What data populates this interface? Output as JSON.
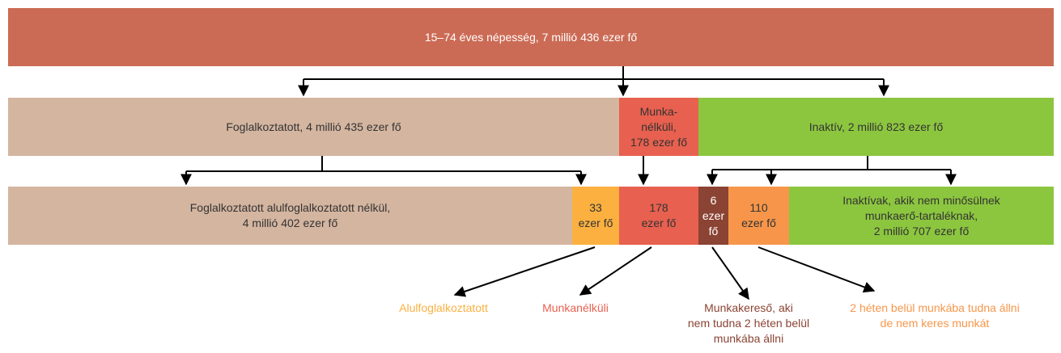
{
  "top": "15–74 éves népesség, 7 millió 436 ezer fő",
  "level2": [
    [
      "Foglalkoztatott, 4 millió 435 ezer fő"
    ],
    [
      "Munka-",
      "nélküli,",
      "178 ezer fő"
    ],
    [
      "Inaktív, 2 millió 823 ezer fő"
    ]
  ],
  "level3": [
    [
      "Foglalkoztatott alulfoglalkoztatott nélkül,",
      "4 millió 402 ezer fő"
    ],
    [
      "33",
      "ezer fő"
    ],
    [
      "178",
      "ezer fő"
    ],
    [
      "6",
      "ezer",
      "fő"
    ],
    [
      "110",
      "ezer fő"
    ],
    [
      "Inaktívak, akik nem minősülnek",
      "munkaerő-tartaléknak,",
      "2 millió 707 ezer fő"
    ]
  ],
  "legend": [
    [
      "Alulfoglalkoztatott"
    ],
    [
      "Munkanélküli"
    ],
    [
      "Munkakereső, aki",
      "nem tudna 2 héten belül",
      "munkába állni"
    ],
    [
      "2 héten belül munkába tudna állni",
      "de nem keres munkát"
    ]
  ]
}
